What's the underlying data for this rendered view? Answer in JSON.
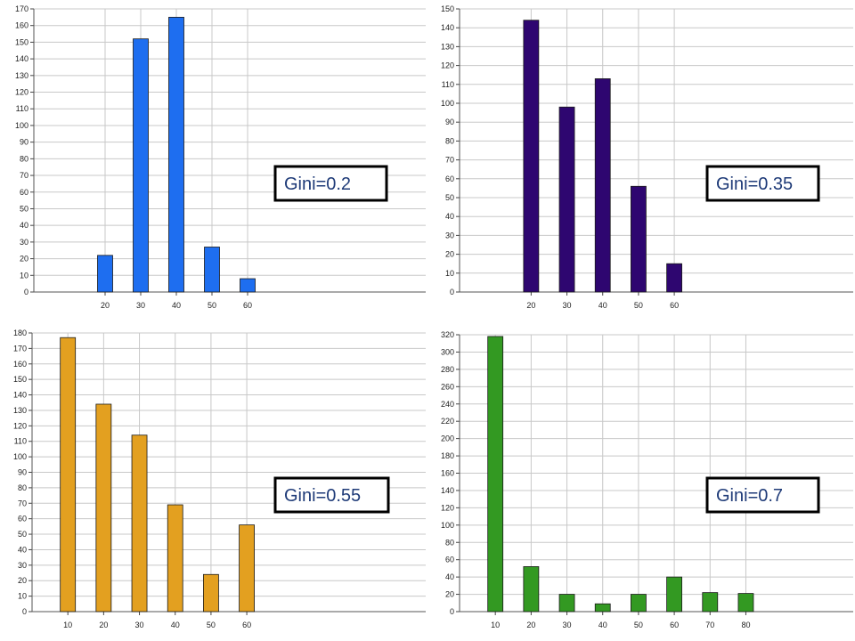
{
  "chart_data": [
    {
      "type": "bar",
      "annotation": "Gini=0.2",
      "color": "#1e6ef0",
      "grid": true,
      "ylim": [
        0,
        170
      ],
      "yticks": [
        0,
        10,
        20,
        30,
        40,
        50,
        60,
        70,
        80,
        90,
        100,
        110,
        120,
        130,
        140,
        150,
        160,
        170
      ],
      "xlim": [
        0,
        110
      ],
      "xticks": [
        20,
        30,
        40,
        50,
        60
      ],
      "x": [
        20,
        30,
        40,
        50,
        60
      ],
      "values": [
        22,
        152,
        165,
        27,
        8
      ]
    },
    {
      "type": "bar",
      "annotation": "Gini=0.35",
      "color": "#2e0670",
      "grid": true,
      "ylim": [
        0,
        150
      ],
      "yticks": [
        0,
        10,
        20,
        30,
        40,
        50,
        60,
        70,
        80,
        90,
        100,
        110,
        120,
        130,
        140,
        150
      ],
      "xlim": [
        0,
        110
      ],
      "xticks": [
        20,
        30,
        40,
        50,
        60
      ],
      "x": [
        20,
        30,
        40,
        50,
        60
      ],
      "values": [
        144,
        98,
        113,
        56,
        15
      ]
    },
    {
      "type": "bar",
      "annotation": "Gini=0.55",
      "color": "#e3a020",
      "grid": true,
      "ylim": [
        0,
        180
      ],
      "yticks": [
        0,
        10,
        20,
        30,
        40,
        50,
        60,
        70,
        80,
        90,
        100,
        110,
        120,
        130,
        140,
        150,
        160,
        170,
        180
      ],
      "xlim": [
        0,
        110
      ],
      "xticks": [
        10,
        20,
        30,
        40,
        50,
        60
      ],
      "x": [
        10,
        20,
        30,
        40,
        50,
        60
      ],
      "values": [
        177,
        134,
        114,
        69,
        24,
        56
      ]
    },
    {
      "type": "bar",
      "annotation": "Gini=0.7",
      "color": "#339922",
      "grid": true,
      "ylim": [
        0,
        320
      ],
      "yticks": [
        0,
        20,
        40,
        60,
        80,
        100,
        120,
        140,
        160,
        180,
        200,
        220,
        240,
        260,
        280,
        300,
        320
      ],
      "xlim": [
        0,
        110
      ],
      "xticks": [
        10,
        20,
        30,
        40,
        50,
        60,
        70,
        80
      ],
      "x": [
        10,
        20,
        30,
        40,
        50,
        60,
        70,
        80
      ],
      "values": [
        318,
        52,
        20,
        9,
        20,
        40,
        22,
        21
      ]
    }
  ]
}
